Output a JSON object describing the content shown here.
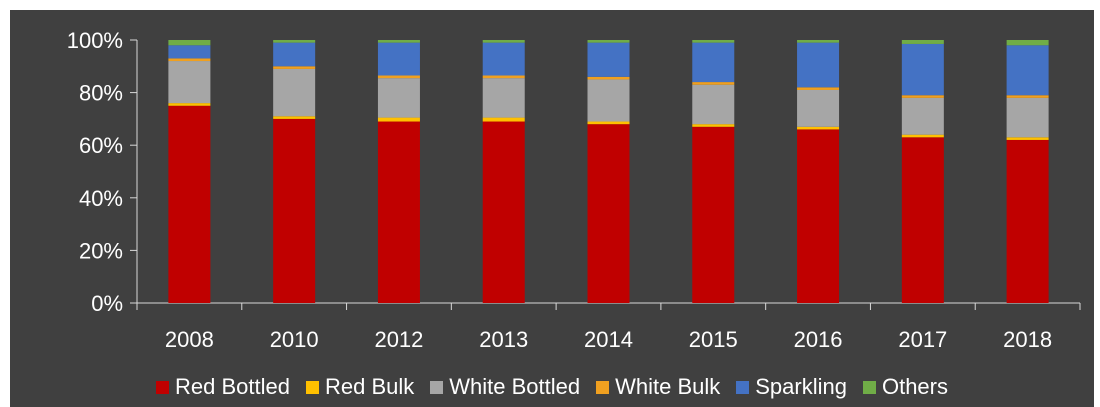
{
  "chart_data": {
    "type": "bar",
    "stacked": true,
    "title": "",
    "xlabel": "",
    "ylabel": "",
    "ylim": [
      0,
      100
    ],
    "yticks": [
      "0%",
      "20%",
      "40%",
      "60%",
      "80%",
      "100%"
    ],
    "categories": [
      "2008",
      "2010",
      "2012",
      "2013",
      "2014",
      "2015",
      "2016",
      "2017",
      "2018"
    ],
    "legend_position": "bottom",
    "grid": false,
    "series": [
      {
        "name": "Red Bottled",
        "color": "#c00000",
        "values": [
          75,
          70,
          69,
          69,
          68,
          67,
          66,
          63,
          62
        ]
      },
      {
        "name": "Red Bulk",
        "color": "#ffc000",
        "values": [
          1,
          1,
          1.5,
          1.5,
          1,
          1,
          1,
          1,
          1
        ]
      },
      {
        "name": "White Bottled",
        "color": "#a6a6a6",
        "values": [
          16,
          18,
          15,
          15,
          16,
          15,
          14,
          14,
          15
        ]
      },
      {
        "name": "White Bulk",
        "color": "#f0a020",
        "values": [
          1,
          1,
          1,
          1,
          1,
          1,
          1,
          1,
          1
        ]
      },
      {
        "name": "Sparkling",
        "color": "#4472c4",
        "values": [
          5,
          9,
          12.5,
          12.5,
          13,
          15,
          17,
          19.5,
          19
        ]
      },
      {
        "name": "Others",
        "color": "#70ad47",
        "values": [
          2,
          1,
          1,
          1,
          1,
          1,
          1,
          1.5,
          2
        ]
      }
    ]
  }
}
